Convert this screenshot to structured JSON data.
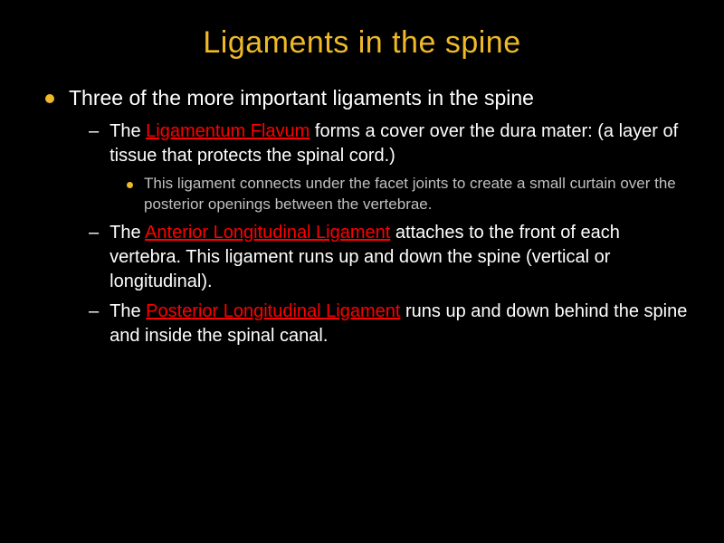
{
  "slide": {
    "background_color": "#000000",
    "title": {
      "text": "Ligaments in the spine",
      "color": "#efb928",
      "fontsize": 34
    },
    "bullet_marker_color": "#efb928",
    "body_text_color": "#ffffff",
    "tertiary_text_color": "#c0c0c0",
    "highlight_color": "#ff0000",
    "l1_fontsize": 23,
    "l2_fontsize": 20,
    "l3_fontsize": 17,
    "content": {
      "l1_text": "Three of the more important ligaments in the spine",
      "item1": {
        "prefix": "The ",
        "highlight": "Ligamentum Flavum",
        "suffix": " forms a cover over the dura mater: (a layer of tissue that protects the spinal cord.)",
        "sub": "This ligament connects under the facet joints to create a small curtain over the posterior openings between the vertebrae."
      },
      "item2": {
        "prefix": "The ",
        "highlight": "Anterior Longitudinal Ligament",
        "suffix": " attaches to the front of each vertebra. This ligament runs up and down the spine (vertical or longitudinal)."
      },
      "item3": {
        "prefix": "The ",
        "highlight": "Posterior Longitudinal Ligament",
        "suffix": " runs up and down behind the spine and inside the spinal canal."
      }
    }
  }
}
